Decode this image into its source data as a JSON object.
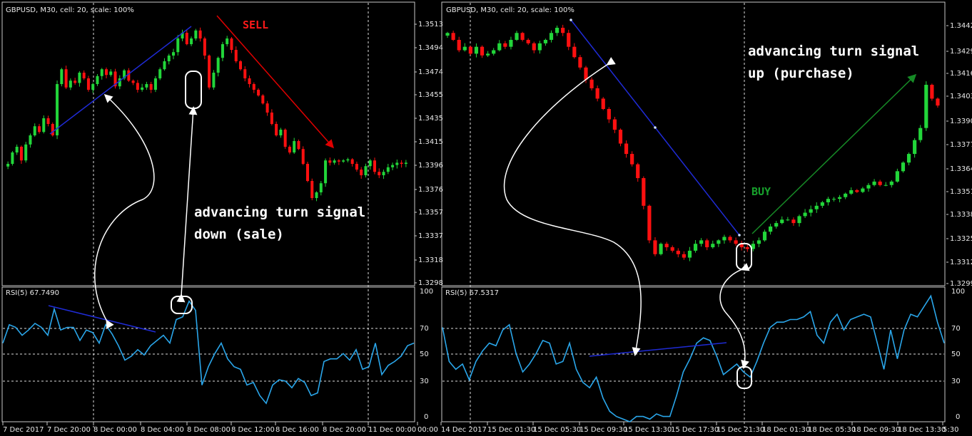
{
  "charts": [
    {
      "header": "GBPUSD, M30, cell: 20, scale: 100%",
      "indicator_label": "RSI(5) 67.7490",
      "signal_label": "SELL",
      "annotation_lines": [
        "advancing turn signal",
        "down (sale)"
      ],
      "price_ticks": [
        "1.3513",
        "1.3494",
        "1.3474",
        "1.3455",
        "1.3435",
        "1.3415",
        "1.3396",
        "1.3376",
        "1.3357",
        "1.3337",
        "1.3318",
        "1.3298"
      ],
      "rsi_ticks": [
        "100",
        "70",
        "50",
        "30",
        "0"
      ],
      "time_ticks": [
        "7 Dec 2017",
        "7 Dec 20:00",
        "8 Dec 00:00",
        "8 Dec 04:00",
        "8 Dec 08:00",
        "8 Dec 12:00",
        "8 Dec 16:00",
        "8 Dec 20:00",
        "11 Dec 00:00",
        "00:00"
      ]
    },
    {
      "header": "GBPUSD, M30, cell: 20, scale: 100%",
      "indicator_label": "RSI(5) 67.5317",
      "signal_label": "BUY",
      "annotation_lines": [
        "advancing turn signal",
        "up (purchase)"
      ],
      "price_ticks": [
        "1.34420",
        "1.34290",
        "1.34160",
        "1.34030",
        "1.33900",
        "1.33770",
        "1.33640",
        "1.33510",
        "1.33380",
        "1.33250",
        "1.33120",
        "1.32990"
      ],
      "rsi_ticks": [
        "100",
        "70",
        "50",
        "30",
        "0"
      ],
      "time_ticks": [
        "14 Dec 2017",
        "15 Dec 01:30",
        "15 Dec 05:30",
        "15 Dec 09:30",
        "15 Dec 13:30",
        "15 Dec 17:30",
        "15 Dec 21:30",
        "18 Dec 01:30",
        "18 Dec 05:30",
        "18 Dec 09:30",
        "18 Dec 13:30",
        "5:30"
      ]
    }
  ],
  "chart_data": [
    {
      "type": "candlestick",
      "symbol": "GBPUSD",
      "timeframe": "M30",
      "ylim": [
        1.329,
        1.3525
      ],
      "closes": [
        1.3395,
        1.3405,
        1.341,
        1.3398,
        1.3412,
        1.342,
        1.3428,
        1.3423,
        1.3435,
        1.343,
        1.342,
        1.3465,
        1.3478,
        1.3462,
        1.3468,
        1.3466,
        1.3475,
        1.347,
        1.346,
        1.3465,
        1.3472,
        1.3478,
        1.3473,
        1.3476,
        1.3463,
        1.347,
        1.3477,
        1.3468,
        1.3466,
        1.346,
        1.3462,
        1.3465,
        1.346,
        1.347,
        1.3478,
        1.3485,
        1.349,
        1.3493,
        1.3505,
        1.351,
        1.35,
        1.3505,
        1.3512,
        1.3505,
        1.349,
        1.3462,
        1.3475,
        1.3488,
        1.35,
        1.3505,
        1.3495,
        1.3485,
        1.3478,
        1.347,
        1.3465,
        1.346,
        1.3455,
        1.3448,
        1.344,
        1.343,
        1.342,
        1.3425,
        1.341,
        1.3405,
        1.3415,
        1.3408,
        1.3395,
        1.338,
        1.3365,
        1.337,
        1.3378,
        1.3398,
        1.3396,
        1.3398,
        1.3397,
        1.3398,
        1.3399,
        1.3395,
        1.339,
        1.3385,
        1.3393,
        1.3398,
        1.3388,
        1.3385,
        1.3388,
        1.3392,
        1.3394,
        1.3396,
        1.3395,
        1.3396
      ],
      "rsi": {
        "ylim": [
          0,
          100
        ],
        "levels": [
          70,
          50,
          30
        ],
        "values": [
          60,
          74,
          72,
          66,
          70,
          75,
          72,
          66,
          86,
          70,
          72,
          72,
          62,
          70,
          68,
          60,
          74,
          67,
          58,
          47,
          50,
          55,
          51,
          58,
          62,
          66,
          60,
          78,
          80,
          92,
          85,
          28,
          42,
          52,
          60,
          48,
          42,
          40,
          28,
          30,
          20,
          14,
          28,
          32,
          31,
          26,
          33,
          30,
          20,
          22,
          46,
          48,
          48,
          52,
          47,
          55,
          40,
          42,
          60,
          36,
          43,
          46,
          50,
          58,
          60
        ]
      },
      "annotations": [
        {
          "text": "SELL",
          "color": "#ff1a1a"
        }
      ]
    },
    {
      "type": "candlestick",
      "symbol": "GBPUSD",
      "timeframe": "M30",
      "ylim": [
        1.3295,
        1.345
      ],
      "closes": [
        1.344,
        1.3436,
        1.343,
        1.3432,
        1.3428,
        1.3432,
        1.3427,
        1.3428,
        1.343,
        1.3434,
        1.3432,
        1.3436,
        1.344,
        1.3436,
        1.3434,
        1.343,
        1.3434,
        1.3436,
        1.344,
        1.3443,
        1.344,
        1.3432,
        1.3426,
        1.342,
        1.3413,
        1.3408,
        1.3402,
        1.3396,
        1.339,
        1.3384,
        1.3376,
        1.337,
        1.3364,
        1.3356,
        1.334,
        1.332,
        1.3312,
        1.3318,
        1.3316,
        1.3314,
        1.3312,
        1.331,
        1.3314,
        1.3318,
        1.332,
        1.3316,
        1.3318,
        1.332,
        1.3322,
        1.332,
        1.3318,
        1.3316,
        1.3315,
        1.3318,
        1.332,
        1.3325,
        1.3328,
        1.333,
        1.3332,
        1.3332,
        1.333,
        1.3334,
        1.3336,
        1.3338,
        1.334,
        1.3342,
        1.3344,
        1.3344,
        1.3345,
        1.3347,
        1.3349,
        1.3348,
        1.335,
        1.3352,
        1.3354,
        1.3352,
        1.3352,
        1.3354,
        1.336,
        1.3365,
        1.337,
        1.3378,
        1.3385,
        1.341,
        1.3402,
        1.3398
      ],
      "rsi": {
        "ylim": [
          0,
          100
        ],
        "levels": [
          70,
          50,
          30
        ],
        "values": [
          72,
          46,
          40,
          44,
          32,
          46,
          54,
          60,
          58,
          70,
          74,
          52,
          38,
          44,
          52,
          62,
          60,
          44,
          46,
          60,
          40,
          30,
          26,
          34,
          18,
          8,
          4,
          2,
          0,
          4,
          4,
          2,
          6,
          4,
          4,
          20,
          38,
          48,
          60,
          64,
          62,
          50,
          36,
          40,
          44,
          38,
          34,
          46,
          60,
          72,
          76,
          76,
          78,
          78,
          80,
          84,
          66,
          60,
          76,
          82,
          70,
          78,
          80,
          82,
          80,
          60,
          40,
          70,
          48,
          70,
          82,
          80,
          88,
          96,
          76,
          60
        ]
      },
      "annotations": [
        {
          "text": "BUY",
          "color": "#17a12c"
        }
      ]
    }
  ]
}
